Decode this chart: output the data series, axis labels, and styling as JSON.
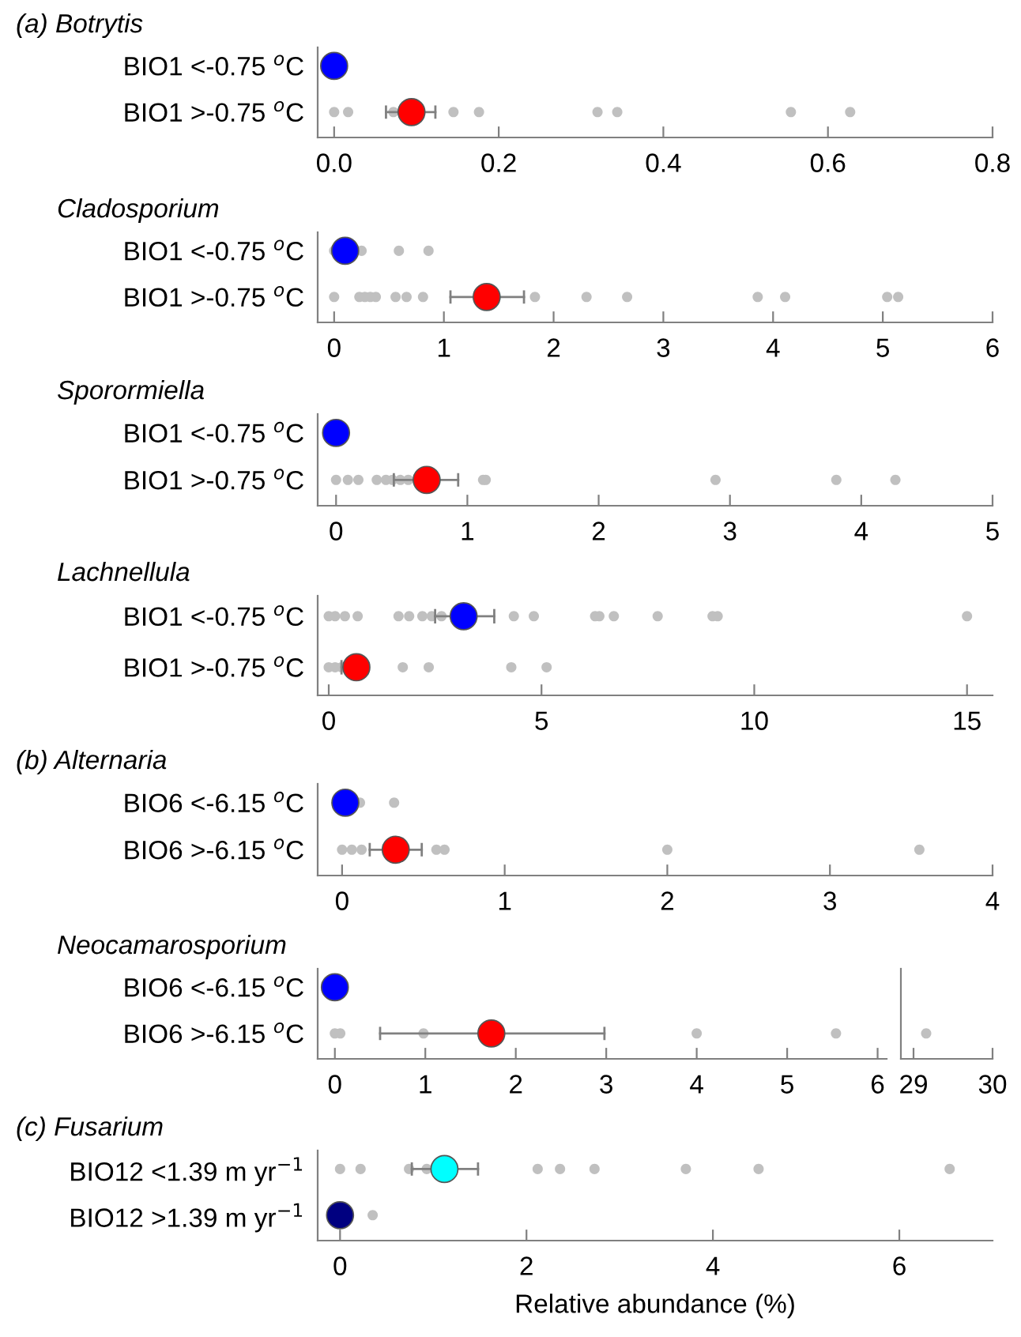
{
  "chart_data": [
    {
      "type": "scatter",
      "orientation": "horizontal",
      "title": "(a) Botrytis",
      "categories": [
        "BIO1 <-0.75 $^{o}$C",
        "BIO1 >-0.75 $^{o}$C"
      ],
      "xlim": [
        -0.02,
        0.8
      ],
      "xticks": [
        {
          "value": 0,
          "label": "0.0"
        },
        0.2,
        0.4,
        0.6,
        0.8
      ],
      "marker": "circle",
      "grid": false,
      "legend": false,
      "series": [
        {
          "color": "#c0c0c0",
          "x": [
            "BIO1 >-0.75 $^{o}$C",
            "BIO1 >-0.75 $^{o}$C",
            "BIO1 >-0.75 $^{o}$C",
            "BIO1 >-0.75 $^{o}$C",
            "BIO1 >-0.75 $^{o}$C",
            "BIO1 >-0.75 $^{o}$C",
            "BIO1 >-0.75 $^{o}$C",
            "BIO1 >-0.75 $^{o}$C",
            "BIO1 >-0.75 $^{o}$C"
          ],
          "values": [
            0,
            0.017,
            0.072,
            0.145,
            0.176,
            0.32,
            0.344,
            0.555,
            0.627
          ]
        },
        {
          "colors": [
            "#0000ff",
            "#ff0000"
          ],
          "values": [
            0,
            0.094
          ],
          "errors": [
            null,
            [
              0.063,
              0.123
            ]
          ]
        }
      ]
    },
    {
      "type": "scatter",
      "orientation": "horizontal",
      "title": "Cladosporium",
      "categories": [
        "BIO1 <-0.75 $^{o}$C",
        "BIO1 >-0.75 $^{o}$C"
      ],
      "xlim": [
        -0.15,
        6
      ],
      "xticks": [
        0,
        1,
        2,
        3,
        4,
        5,
        6
      ],
      "marker": "circle",
      "grid": false,
      "legend": false,
      "series": [
        {
          "color": "#c0c0c0",
          "x": [
            "BIO1 <-0.75 $^{o}$C",
            "BIO1 <-0.75 $^{o}$C",
            "BIO1 <-0.75 $^{o}$C",
            "BIO1 <-0.75 $^{o}$C",
            "BIO1 >-0.75 $^{o}$C",
            "BIO1 >-0.75 $^{o}$C",
            "BIO1 >-0.75 $^{o}$C",
            "BIO1 >-0.75 $^{o}$C",
            "BIO1 >-0.75 $^{o}$C",
            "BIO1 >-0.75 $^{o}$C",
            "BIO1 >-0.75 $^{o}$C",
            "BIO1 >-0.75 $^{o}$C",
            "BIO1 >-0.75 $^{o}$C",
            "BIO1 >-0.75 $^{o}$C",
            "BIO1 >-0.75 $^{o}$C",
            "BIO1 >-0.75 $^{o}$C",
            "BIO1 >-0.75 $^{o}$C",
            "BIO1 >-0.75 $^{o}$C",
            "BIO1 >-0.75 $^{o}$C"
          ],
          "values": [
            0,
            0.25,
            0.59,
            0.86,
            0,
            0.23,
            0.28,
            0.33,
            0.38,
            0.56,
            0.66,
            0.81,
            1.83,
            2.3,
            2.67,
            3.86,
            4.11,
            5.04,
            5.14
          ]
        },
        {
          "colors": [
            "#0000ff",
            "#ff0000"
          ],
          "values": [
            0.1,
            1.39
          ],
          "errors": [
            null,
            [
              1.06,
              1.73
            ]
          ]
        }
      ]
    },
    {
      "type": "scatter",
      "orientation": "horizontal",
      "title": "Sporormiella",
      "categories": [
        "BIO1 <-0.75 $^{o}$C",
        "BIO1 >-0.75 $^{o}$C"
      ],
      "xlim": [
        -0.14,
        5
      ],
      "xticks": [
        0,
        1,
        2,
        3,
        4,
        5
      ],
      "marker": "circle",
      "grid": false,
      "legend": false,
      "series": [
        {
          "color": "#c0c0c0",
          "x": [
            "BIO1 >-0.75 $^{o}$C",
            "BIO1 >-0.75 $^{o}$C",
            "BIO1 >-0.75 $^{o}$C",
            "BIO1 >-0.75 $^{o}$C",
            "BIO1 >-0.75 $^{o}$C",
            "BIO1 >-0.75 $^{o}$C",
            "BIO1 >-0.75 $^{o}$C",
            "BIO1 >-0.75 $^{o}$C",
            "BIO1 >-0.75 $^{o}$C",
            "BIO1 >-0.75 $^{o}$C",
            "BIO1 >-0.75 $^{o}$C",
            "BIO1 >-0.75 $^{o}$C",
            "BIO1 >-0.75 $^{o}$C"
          ],
          "values": [
            0,
            0.09,
            0.17,
            0.31,
            0.38,
            0.43,
            0.49,
            0.55,
            1.12,
            1.14,
            2.89,
            3.81,
            4.26
          ]
        },
        {
          "colors": [
            "#0000ff",
            "#ff0000"
          ],
          "values": [
            0,
            0.69
          ],
          "errors": [
            null,
            [
              0.44,
              0.93
            ]
          ]
        }
      ]
    },
    {
      "type": "scatter",
      "orientation": "horizontal",
      "title": "Lachnellula",
      "categories": [
        "BIO1 <-0.75 $^{o}$C",
        "BIO1 >-0.75 $^{o}$C"
      ],
      "xlim": [
        -0.26,
        15.6
      ],
      "xticks": [
        0,
        5,
        10,
        15
      ],
      "marker": "circle",
      "grid": false,
      "legend": false,
      "series": [
        {
          "color": "#c0c0c0",
          "x": [
            "BIO1 <-0.75 $^{o}$C",
            "BIO1 <-0.75 $^{o}$C",
            "BIO1 <-0.75 $^{o}$C",
            "BIO1 <-0.75 $^{o}$C",
            "BIO1 <-0.75 $^{o}$C",
            "BIO1 <-0.75 $^{o}$C",
            "BIO1 <-0.75 $^{o}$C",
            "BIO1 <-0.75 $^{o}$C",
            "BIO1 <-0.75 $^{o}$C",
            "BIO1 <-0.75 $^{o}$C",
            "BIO1 <-0.75 $^{o}$C",
            "BIO1 <-0.75 $^{o}$C",
            "BIO1 <-0.75 $^{o}$C",
            "BIO1 <-0.75 $^{o}$C",
            "BIO1 <-0.75 $^{o}$C",
            "BIO1 <-0.75 $^{o}$C",
            "BIO1 <-0.75 $^{o}$C",
            "BIO1 <-0.75 $^{o}$C",
            "BIO1 >-0.75 $^{o}$C",
            "BIO1 >-0.75 $^{o}$C",
            "BIO1 >-0.75 $^{o}$C",
            "BIO1 >-0.75 $^{o}$C",
            "BIO1 >-0.75 $^{o}$C",
            "BIO1 >-0.75 $^{o}$C",
            "BIO1 >-0.75 $^{o}$C"
          ],
          "values": [
            0,
            0.15,
            0.38,
            0.68,
            1.64,
            1.89,
            2.2,
            2.42,
            2.65,
            4.35,
            4.82,
            6.26,
            6.36,
            6.7,
            7.73,
            9.02,
            9.14,
            15.0,
            0,
            0.15,
            0.3,
            1.74,
            2.35,
            4.29,
            5.12
          ]
        },
        {
          "colors": [
            "#0000ff",
            "#ff0000"
          ],
          "values": [
            3.17,
            0.65
          ],
          "errors": [
            [
              2.5,
              3.89
            ],
            [
              0.3,
              0.91
            ]
          ]
        }
      ]
    },
    {
      "type": "scatter",
      "orientation": "horizontal",
      "title": "(b) Alternaria",
      "categories": [
        "BIO6 <-6.15 $^{o}$C",
        "BIO6 >-6.15 $^{o}$C"
      ],
      "xlim": [
        -0.15,
        4
      ],
      "xticks": [
        0,
        1,
        2,
        3,
        4
      ],
      "marker": "circle",
      "grid": false,
      "legend": false,
      "series": [
        {
          "color": "#c0c0c0",
          "x": [
            "BIO6 <-6.15 $^{o}$C",
            "BIO6 <-6.15 $^{o}$C",
            "BIO6 >-6.15 $^{o}$C",
            "BIO6 >-6.15 $^{o}$C",
            "BIO6 >-6.15 $^{o}$C",
            "BIO6 >-6.15 $^{o}$C",
            "BIO6 >-6.15 $^{o}$C",
            "BIO6 >-6.15 $^{o}$C",
            "BIO6 >-6.15 $^{o}$C"
          ],
          "values": [
            0.11,
            0.32,
            0,
            0.06,
            0.12,
            0.58,
            0.63,
            2.0,
            3.55
          ]
        },
        {
          "colors": [
            "#0000ff",
            "#ff0000"
          ],
          "values": [
            0.02,
            0.33
          ],
          "errors": [
            null,
            [
              0.17,
              0.49
            ]
          ]
        }
      ]
    },
    {
      "type": "scatter",
      "orientation": "horizontal",
      "title": "Neocamarosporium",
      "categories": [
        "BIO6 <-6.15 $^{o}$C",
        "BIO6 >-6.15 $^{o}$C"
      ],
      "xlim": [
        -0.19,
        6.1
      ],
      "xticks": [
        0,
        1,
        2,
        3,
        4,
        5,
        6
      ],
      "marker": "circle",
      "grid": false,
      "legend": false,
      "series": [
        {
          "color": "#c0c0c0",
          "x": [
            "BIO6 >-6.15 $^{o}$C",
            "BIO6 >-6.15 $^{o}$C",
            "BIO6 >-6.15 $^{o}$C",
            "BIO6 >-6.15 $^{o}$C",
            "BIO6 >-6.15 $^{o}$C"
          ],
          "values": [
            0,
            0.06,
            0.98,
            4.0,
            5.54
          ]
        },
        {
          "colors": [
            "#0000ff",
            "#ff0000"
          ],
          "values": [
            0,
            1.73
          ],
          "errors": [
            null,
            [
              0.5,
              2.98
            ]
          ]
        }
      ]
    },
    {
      "type": "scatter",
      "orientation": "horizontal",
      "tick_labels": "x",
      "categories": [
        "BIO6 <-6.15 $^{o}$C",
        "BIO6 >-6.15 $^{o}$C"
      ],
      "xlim": [
        28.84,
        30
      ],
      "xticks": [
        29,
        30
      ],
      "marker": "circle",
      "grid": false,
      "legend": false,
      "series": [
        {
          "color": "#c0c0c0",
          "x": [
            "BIO6 >-6.15 $^{o}$C"
          ],
          "values": [
            29.16
          ]
        }
      ]
    },
    {
      "type": "scatter",
      "orientation": "horizontal",
      "title": "(c) Fusarium",
      "xlabel": "Relative abundance (%)",
      "categories": [
        "BIO12 <1.39 m yr$^{−1}$",
        "BIO12 >1.39 m yr$^{−1}$"
      ],
      "xlim": [
        -0.24,
        7
      ],
      "xticks": [
        0,
        2,
        4,
        6
      ],
      "marker": "circle",
      "grid": false,
      "legend": false,
      "series": [
        {
          "color": "#c0c0c0",
          "x": [
            "BIO12 <1.39 m yr$^{−1}$",
            "BIO12 <1.39 m yr$^{−1}$",
            "BIO12 <1.39 m yr$^{−1}$",
            "BIO12 <1.39 m yr$^{−1}$",
            "BIO12 <1.39 m yr$^{−1}$",
            "BIO12 <1.39 m yr$^{−1}$",
            "BIO12 <1.39 m yr$^{−1}$",
            "BIO12 <1.39 m yr$^{−1}$",
            "BIO12 <1.39 m yr$^{−1}$",
            "BIO12 <1.39 m yr$^{−1}$",
            "BIO12 >1.39 m yr$^{−1}$"
          ],
          "values": [
            0,
            0.22,
            0.74,
            0.93,
            2.12,
            2.36,
            2.73,
            3.71,
            4.49,
            6.54,
            0.35
          ]
        },
        {
          "colors": [
            "#00ffff",
            "#000080"
          ],
          "values": [
            1.12,
            0
          ],
          "errors": [
            [
              0.77,
              1.48
            ],
            null
          ]
        }
      ]
    }
  ]
}
